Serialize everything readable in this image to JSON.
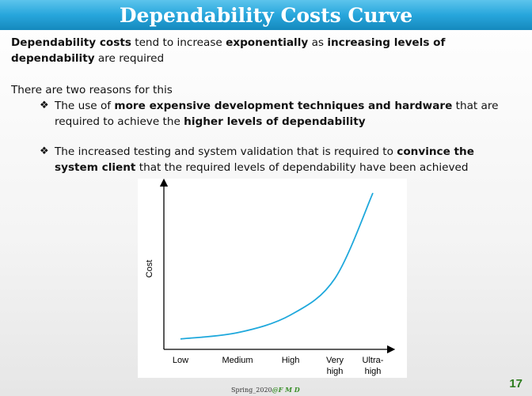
{
  "slide": {
    "title": "Dependability Costs Curve",
    "intro": {
      "b1": "Dependability costs",
      "t1": " tend to increase ",
      "b2": "exponentially",
      "t2": " as ",
      "b3": "increasing levels of dependability",
      "t3": " are required"
    },
    "reasons_lead": "There are two reasons for this",
    "bullet_glyph": "❖",
    "bullet1": {
      "t1": "The use of ",
      "b1": "more expensive development techniques and hardware",
      "t2": " that are required to achieve the ",
      "b2": "higher levels of dependability"
    },
    "bullet2": {
      "t1": "The increased testing and system validation that is required to ",
      "b1": "convince the system client",
      "t2": " that the required levels of dependability have been achieved"
    },
    "footer": {
      "term": "Spring_2020",
      "at": "@",
      "author": "F M D"
    },
    "page_number": "17"
  },
  "chart_data": {
    "type": "line",
    "ylabel": "Cost",
    "xlabel": "",
    "categories": [
      "Low",
      "Medium",
      "High",
      "Very high",
      "Ultra-high"
    ],
    "series": [
      {
        "values": [
          1,
          1.6,
          3.3,
          6.8,
          15.0
        ]
      }
    ],
    "ylim": [
      0,
      16
    ],
    "grid": false,
    "line_color": "#1ea8dc"
  }
}
